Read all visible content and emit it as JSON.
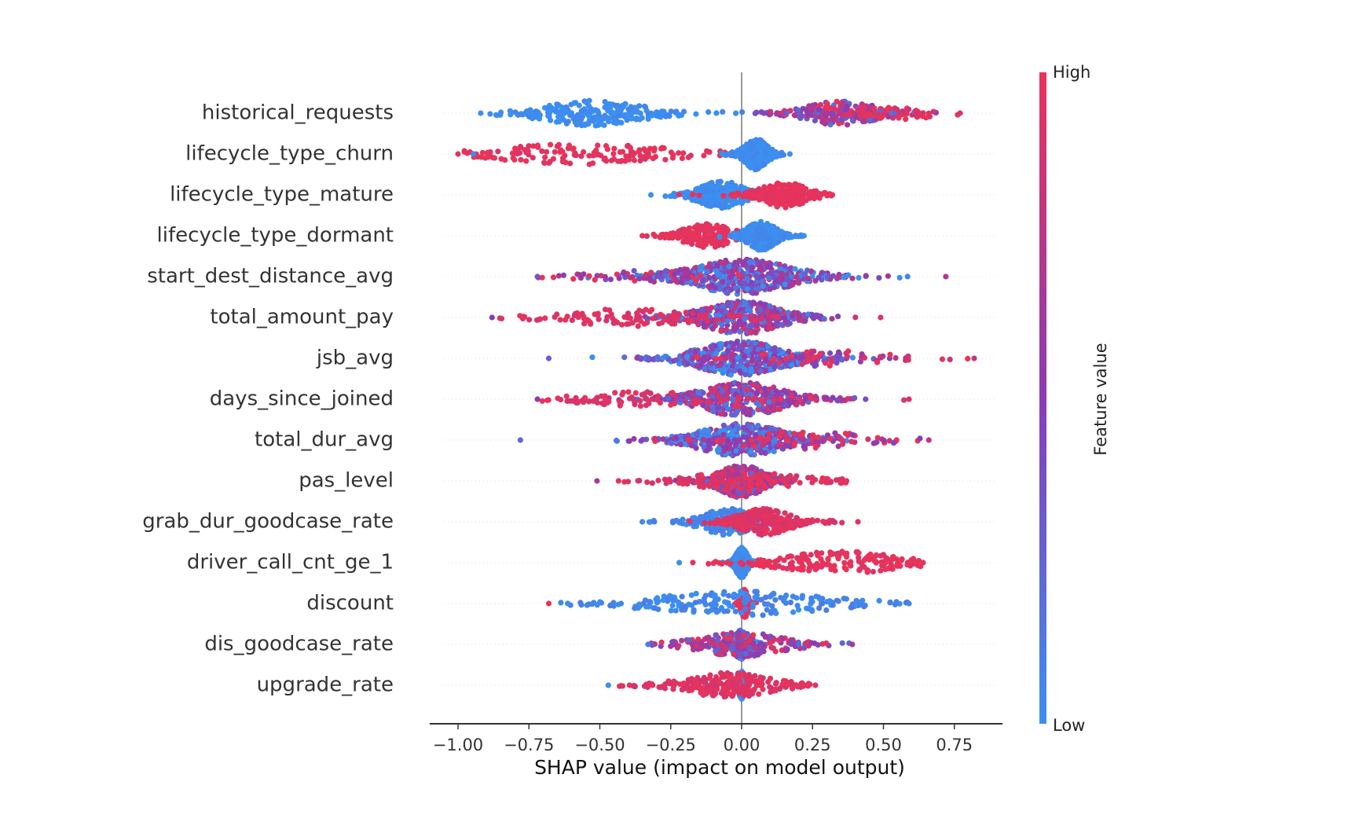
{
  "chart_data": {
    "type": "scatter",
    "subtype": "shap-beeswarm",
    "xlabel": "SHAP value (impact on model output)",
    "xlim": [
      -1.1,
      0.92
    ],
    "xticks": [
      -1.0,
      -0.75,
      -0.5,
      -0.25,
      0.0,
      0.25,
      0.5,
      0.75
    ],
    "xtick_labels": [
      "−1.00",
      "−0.75",
      "−0.50",
      "−0.25",
      "0.00",
      "0.25",
      "0.50",
      "0.75"
    ],
    "colorbar": {
      "title": "Feature value",
      "high_label": "High",
      "low_label": "Low",
      "high_color": "#e8335a",
      "low_color": "#3b8ff0"
    },
    "grid": false,
    "features": [
      {
        "name": "historical_requests",
        "min": -0.92,
        "max": 0.77,
        "components": [
          {
            "center": -0.52,
            "spread": 0.18,
            "value": 0.0,
            "weight": 0.45
          },
          {
            "center": 0.35,
            "spread": 0.12,
            "value": 0.6,
            "weight": 0.45
          },
          {
            "center": 0.55,
            "spread": 0.12,
            "value": 0.95,
            "weight": 0.1
          }
        ]
      },
      {
        "name": "lifecycle_type_churn",
        "min": -1.0,
        "max": 0.17,
        "components": [
          {
            "center": -0.55,
            "spread": 0.3,
            "value": 1.0,
            "weight": 0.3
          },
          {
            "center": 0.05,
            "spread": 0.04,
            "value": 0.0,
            "weight": 0.7
          }
        ]
      },
      {
        "name": "lifecycle_type_mature",
        "min": -0.32,
        "max": 0.32,
        "components": [
          {
            "center": -0.07,
            "spread": 0.08,
            "value": 0.0,
            "weight": 0.55
          },
          {
            "center": 0.15,
            "spread": 0.08,
            "value": 1.0,
            "weight": 0.45
          }
        ]
      },
      {
        "name": "lifecycle_type_dormant",
        "min": -0.35,
        "max": 0.22,
        "components": [
          {
            "center": -0.12,
            "spread": 0.09,
            "value": 1.0,
            "weight": 0.4
          },
          {
            "center": 0.07,
            "spread": 0.05,
            "value": 0.0,
            "weight": 0.6
          }
        ]
      },
      {
        "name": "start_dest_distance_avg",
        "min": -0.72,
        "max": 0.72,
        "components": [
          {
            "center": 0.0,
            "spread": 0.18,
            "value": 0.35,
            "weight": 0.9
          },
          {
            "center": -0.3,
            "spread": 0.2,
            "value": 0.7,
            "weight": 0.1
          }
        ]
      },
      {
        "name": "total_amount_pay",
        "min": -0.88,
        "max": 0.49,
        "components": [
          {
            "center": 0.0,
            "spread": 0.14,
            "value": 0.5,
            "weight": 0.8
          },
          {
            "center": -0.4,
            "spread": 0.22,
            "value": 0.95,
            "weight": 0.2
          }
        ]
      },
      {
        "name": "jsb_avg",
        "min": -0.68,
        "max": 0.82,
        "components": [
          {
            "center": 0.0,
            "spread": 0.16,
            "value": 0.3,
            "weight": 0.85
          },
          {
            "center": 0.3,
            "spread": 0.2,
            "value": 0.8,
            "weight": 0.15
          }
        ]
      },
      {
        "name": "days_since_joined",
        "min": -0.72,
        "max": 0.59,
        "components": [
          {
            "center": 0.0,
            "spread": 0.15,
            "value": 0.55,
            "weight": 0.85
          },
          {
            "center": -0.35,
            "spread": 0.2,
            "value": 0.95,
            "weight": 0.15
          }
        ]
      },
      {
        "name": "total_dur_avg",
        "min": -0.78,
        "max": 0.66,
        "components": [
          {
            "center": 0.0,
            "spread": 0.15,
            "value": 0.25,
            "weight": 0.8
          },
          {
            "center": 0.2,
            "spread": 0.25,
            "value": 0.8,
            "weight": 0.2
          }
        ]
      },
      {
        "name": "pas_level",
        "min": -0.51,
        "max": 0.37,
        "components": [
          {
            "center": 0.0,
            "spread": 0.08,
            "value": 0.65,
            "weight": 0.8
          },
          {
            "center": 0.0,
            "spread": 0.2,
            "value": 0.95,
            "weight": 0.2
          }
        ]
      },
      {
        "name": "grab_dur_goodcase_rate",
        "min": -0.35,
        "max": 0.41,
        "components": [
          {
            "center": -0.05,
            "spread": 0.09,
            "value": 0.05,
            "weight": 0.5
          },
          {
            "center": 0.08,
            "spread": 0.09,
            "value": 0.95,
            "weight": 0.5
          }
        ]
      },
      {
        "name": "driver_call_cnt_ge_1",
        "min": -0.22,
        "max": 0.64,
        "components": [
          {
            "center": 0.0,
            "spread": 0.02,
            "value": 0.0,
            "weight": 0.65
          },
          {
            "center": 0.35,
            "spread": 0.2,
            "value": 1.0,
            "weight": 0.35
          }
        ]
      },
      {
        "name": "discount",
        "min": -0.68,
        "max": 0.59,
        "components": [
          {
            "center": 0.01,
            "spread": 0.012,
            "value": 1.0,
            "weight": 0.6
          },
          {
            "center": 0.0,
            "spread": 0.3,
            "value": 0.05,
            "weight": 0.4
          }
        ]
      },
      {
        "name": "dis_goodcase_rate",
        "min": -0.33,
        "max": 0.39,
        "components": [
          {
            "center": 0.0,
            "spread": 0.03,
            "value": 0.1,
            "weight": 0.6
          },
          {
            "center": 0.0,
            "spread": 0.15,
            "value": 0.65,
            "weight": 0.4
          }
        ]
      },
      {
        "name": "upgrade_rate",
        "min": -0.47,
        "max": 0.26,
        "components": [
          {
            "center": 0.0,
            "spread": 0.01,
            "value": 0.0,
            "weight": 0.55
          },
          {
            "center": -0.05,
            "spread": 0.15,
            "value": 0.95,
            "weight": 0.45
          }
        ]
      }
    ]
  }
}
